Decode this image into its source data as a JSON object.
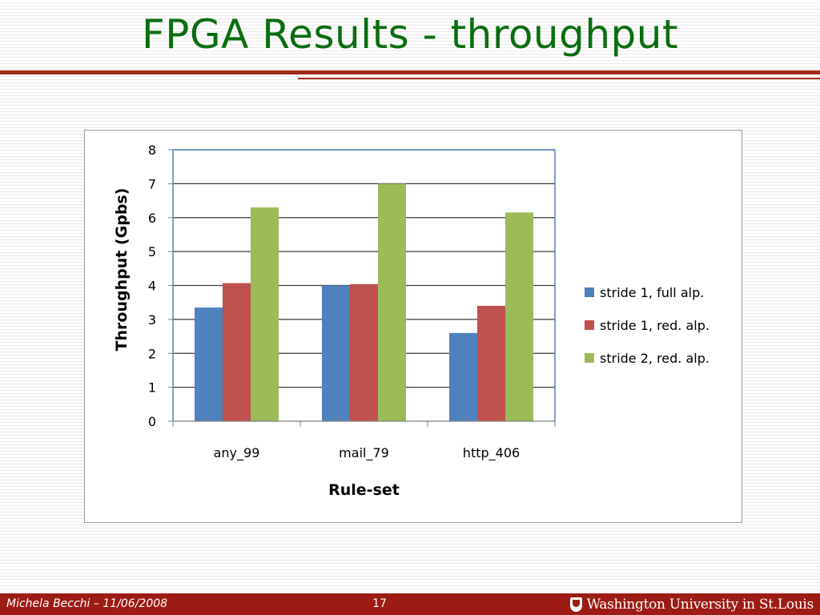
{
  "slide": {
    "title": "FPGA Results - throughput"
  },
  "footer": {
    "author": "Michela Becchi –  11/06/2008",
    "page_number": "17",
    "logo_text": "Washington University in St.Louis"
  },
  "colors": {
    "title": "#0a6e0f",
    "accent_rule": "#a22a1a",
    "footer_bg": "#9c1b12"
  },
  "chart_data": {
    "type": "bar",
    "title": "",
    "xlabel": "Rule-set",
    "ylabel": "Throughput (Gpbs)",
    "ylim": [
      0,
      8
    ],
    "yticks": [
      0,
      1,
      2,
      3,
      4,
      5,
      6,
      7,
      8
    ],
    "grid": true,
    "legend_position": "right",
    "categories": [
      "any_99",
      "mail_79",
      "http_406"
    ],
    "series": [
      {
        "name": "stride 1, full alp.",
        "color": "#4f81bd",
        "values": [
          3.35,
          4.0,
          2.6
        ]
      },
      {
        "name": "stride 1, red. alp.",
        "color": "#c0504d",
        "values": [
          4.07,
          4.04,
          3.4
        ]
      },
      {
        "name": "stride 2, red. alp.",
        "color": "#9bbb59",
        "values": [
          6.3,
          7.0,
          6.15
        ]
      }
    ]
  }
}
